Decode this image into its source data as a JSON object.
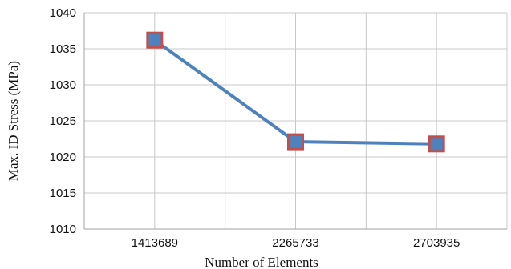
{
  "chart_data": {
    "type": "line",
    "categories": [
      "1413689",
      "2265733",
      "2703935"
    ],
    "values": [
      1036.2,
      1022.1,
      1021.8
    ],
    "xlabel": "Number of Elements",
    "ylabel": "Max. ID Stress (MPa)",
    "ylim": [
      1010,
      1040
    ],
    "yticks": [
      "1010",
      "1015",
      "1020",
      "1025",
      "1030",
      "1035",
      "1040"
    ],
    "grid": true,
    "line_color": "#4f81bd",
    "marker_fill": "#4f81bd",
    "marker_edge_color": "#c0504d"
  }
}
